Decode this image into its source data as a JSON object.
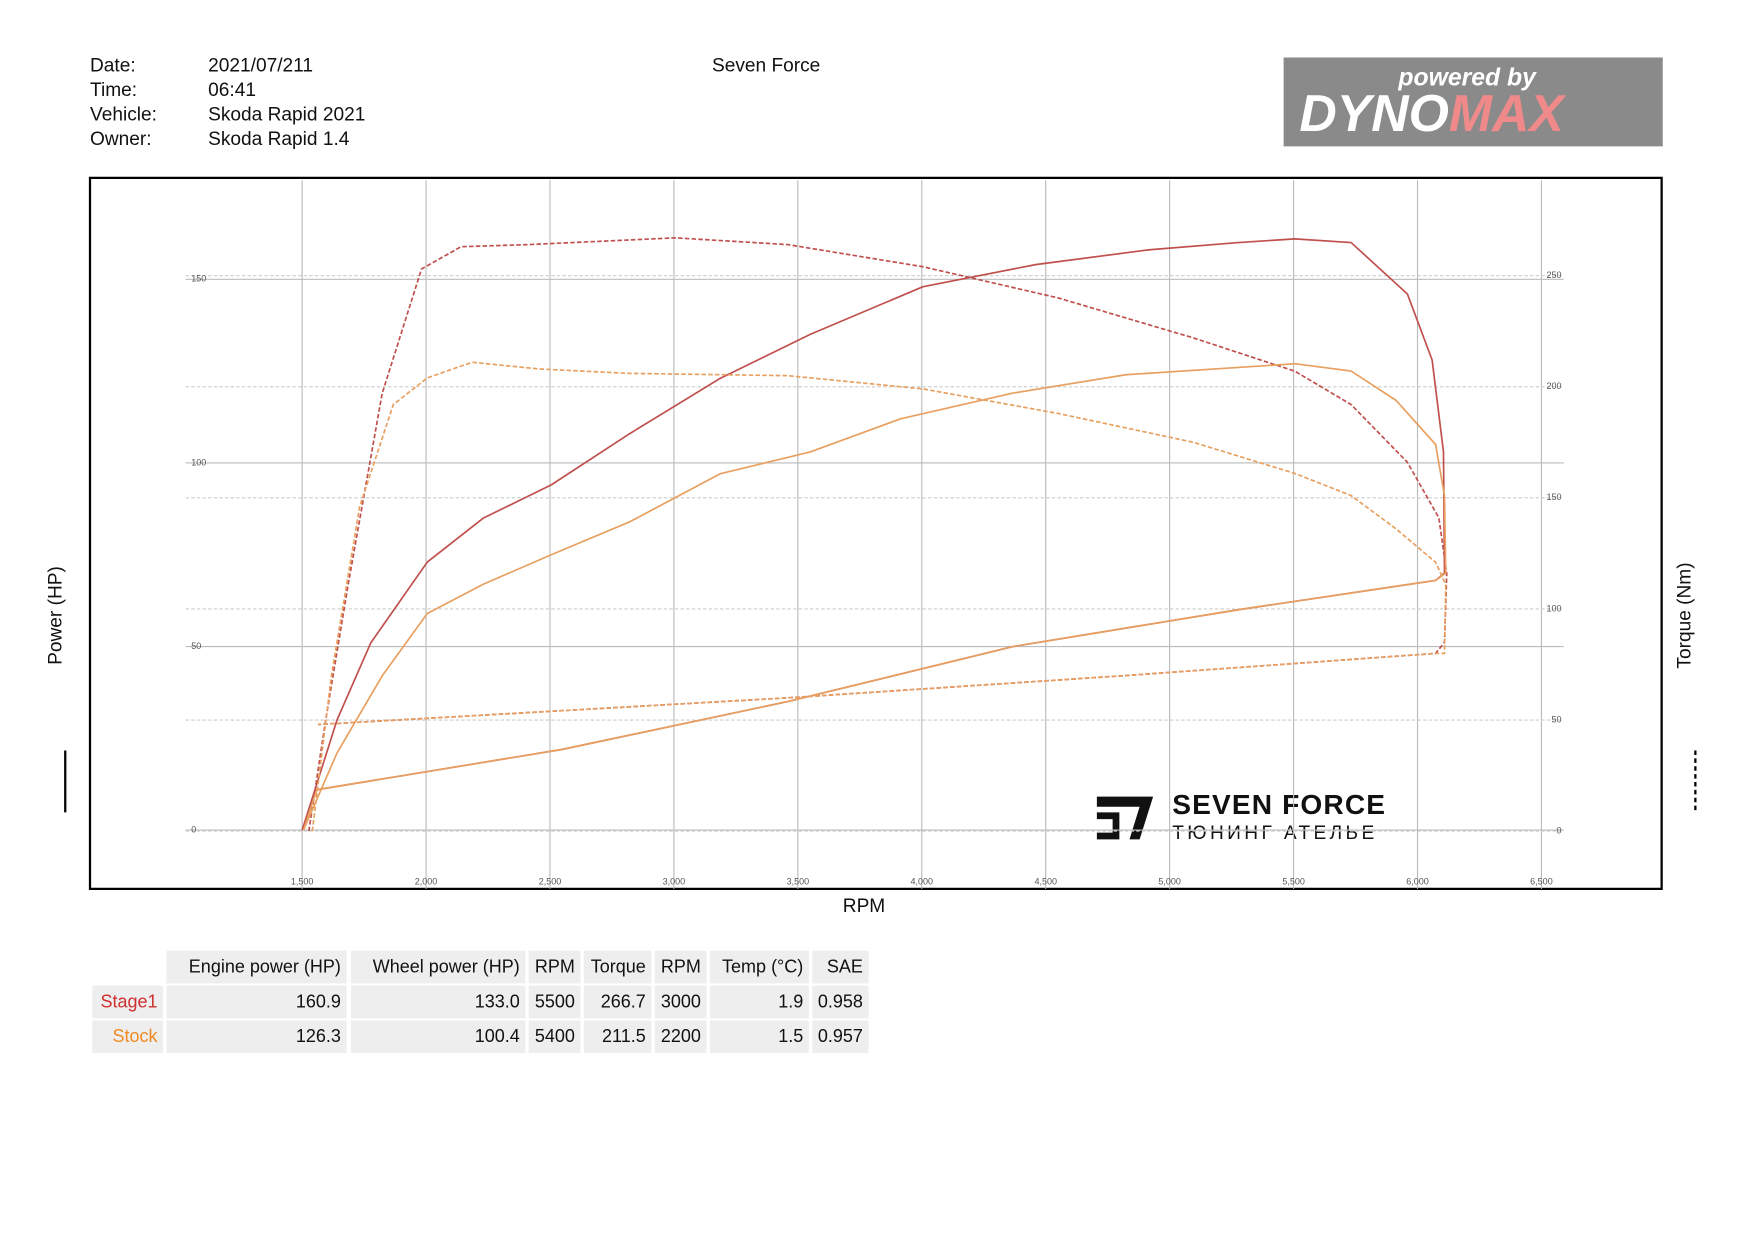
{
  "header": {
    "fields": [
      {
        "label": "Date:",
        "value": "2021/07/211"
      },
      {
        "label": "Time:",
        "value": "06:41"
      },
      {
        "label": "Vehicle:",
        "value": "Skoda Rapid 2021"
      },
      {
        "label": "Owner:",
        "value": "Skoda Rapid 1.4"
      }
    ],
    "center": "Seven Force",
    "logo": {
      "line1": "powered by",
      "line2a": "DYNO",
      "line2b": "MAX"
    }
  },
  "watermark": {
    "brand": "SEVEN FORCE",
    "tagline": "ТЮНИНГ АТЕЛЬЕ"
  },
  "chart_data": {
    "type": "line",
    "xlabel": "RPM",
    "ylabel": "Power (HP)",
    "y2label": "Torque (Nm)",
    "xlim": [
      1030,
      6590
    ],
    "xticks": [
      {
        "value": 1500,
        "label": "1,500"
      },
      {
        "value": 2000,
        "label": "2,000"
      },
      {
        "value": 2500,
        "label": "2,500"
      },
      {
        "value": 3000,
        "label": "3,000"
      },
      {
        "value": 3500,
        "label": "3,500"
      },
      {
        "value": 4000,
        "label": "4,000"
      },
      {
        "value": 4500,
        "label": "4,500"
      },
      {
        "value": 5000,
        "label": "5,000"
      },
      {
        "value": 5500,
        "label": "5,500"
      },
      {
        "value": 6000,
        "label": "6,000"
      },
      {
        "value": 6500,
        "label": "6,500"
      }
    ],
    "ylim": [
      -16,
      177
    ],
    "yticks": [
      0,
      50,
      100,
      150
    ],
    "y2lim": [
      -26,
      293
    ],
    "y2ticks": [
      0,
      50,
      100,
      150,
      200,
      250
    ],
    "grid": true,
    "series": [
      {
        "color": "#c0504d",
        "dash": false,
        "axis": "y",
        "x": [
          1500,
          1641,
          1777,
          2005,
          2232,
          2505,
          2823,
          3186,
          3550,
          4005,
          4459,
          4914,
          5277,
          5505,
          5732,
          5959,
          6059,
          6105,
          6109,
          6073,
          5277,
          4368,
          3459,
          2550,
          1559,
          1500
        ],
        "values": [
          0,
          30,
          51,
          73,
          85,
          94,
          108,
          123,
          135,
          148,
          154,
          158,
          160,
          161,
          160,
          146,
          128,
          103,
          70,
          68,
          60,
          50,
          35,
          22,
          11,
          0
        ]
      },
      {
        "color": "#c0504d",
        "dash": true,
        "axis": "y2",
        "x": [
          1527,
          1595,
          1686,
          1823,
          1982,
          2141,
          2414,
          3005,
          3459,
          4005,
          4550,
          5095,
          5505,
          5732,
          5959,
          6086,
          6118,
          6109,
          6073,
          4823,
          3459,
          1564
        ],
        "values": [
          0,
          50,
          111,
          197,
          253,
          263,
          264,
          267,
          264,
          254,
          240,
          222,
          207,
          192,
          166,
          141,
          116,
          85,
          80,
          70,
          60,
          48
        ]
      },
      {
        "color": "#e8a060",
        "dash": false,
        "axis": "y",
        "x": [
          1505,
          1641,
          1823,
          2005,
          2232,
          2505,
          2823,
          3186,
          3550,
          3914,
          4368,
          4823,
          5277,
          5505,
          5732,
          5914,
          6073,
          6109,
          6114,
          6073,
          5277,
          4368,
          3459,
          2550,
          1559,
          1505
        ],
        "values": [
          0,
          21,
          42,
          59,
          67,
          75,
          84,
          97,
          103,
          112,
          119,
          124,
          126,
          127,
          125,
          117,
          105,
          91,
          70,
          68,
          60,
          50,
          35,
          22,
          11,
          0
        ]
      },
      {
        "color": "#e8a060",
        "dash": true,
        "axis": "y2",
        "x": [
          1541,
          1618,
          1732,
          1868,
          2005,
          2186,
          2459,
          2823,
          3459,
          4005,
          4550,
          5095,
          5505,
          5732,
          5914,
          6073,
          6114,
          6109,
          6073,
          4823,
          3459,
          1564
        ],
        "values": [
          0,
          70,
          146,
          192,
          204,
          211,
          208,
          206,
          205,
          199,
          188,
          175,
          161,
          151,
          136,
          121,
          111,
          80,
          80,
          70,
          60,
          48
        ]
      }
    ]
  },
  "table": {
    "columns": [
      "Engine power (HP)",
      "Wheel power (HP)",
      "RPM",
      "Torque",
      "RPM",
      "Temp (°C)",
      "SAE"
    ],
    "rows": [
      [
        "Stage1",
        "160.9",
        "133.0",
        "5500",
        "266.7",
        "3000",
        "1.9",
        "0.958"
      ],
      [
        "Stock",
        "126.3",
        "100.4",
        "5400",
        "211.5",
        "2200",
        "1.5",
        "0.957"
      ]
    ],
    "row_colors": [
      "#d03030",
      "#f08a20"
    ]
  }
}
